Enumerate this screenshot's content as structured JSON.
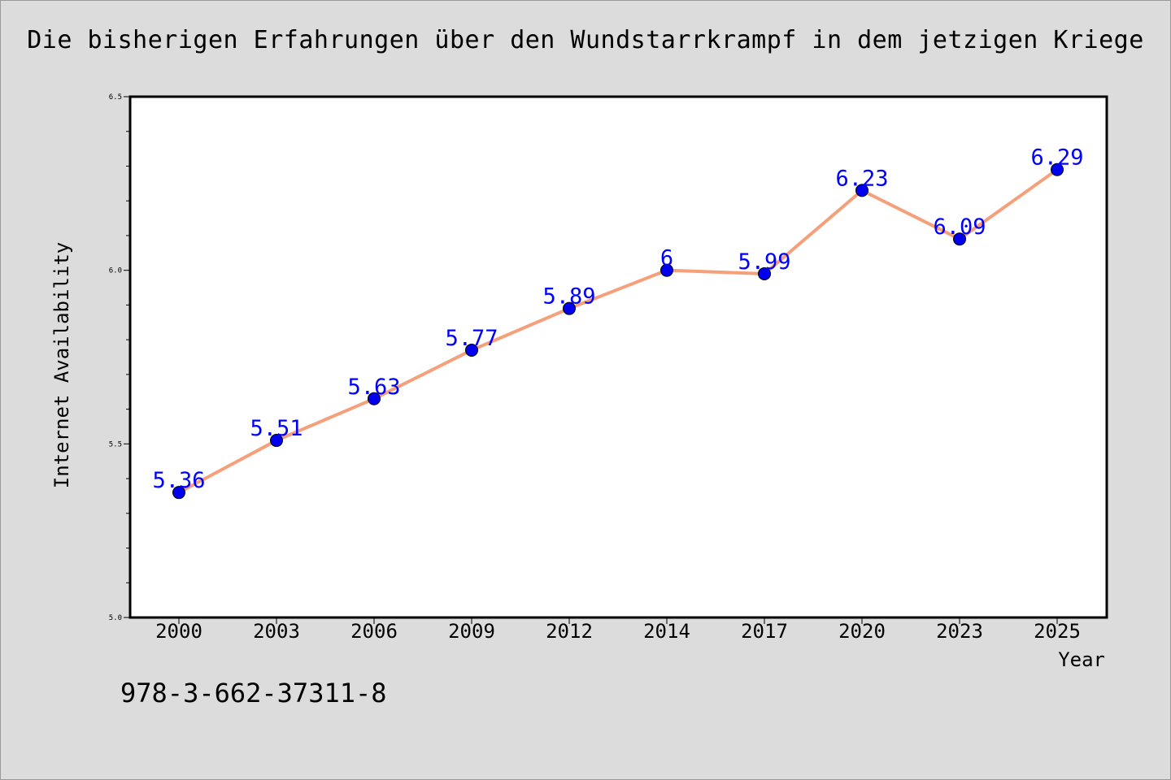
{
  "chart_data": {
    "type": "line",
    "title": "Die bisherigen Erfahrungen über den Wundstarrkrampf in dem jetzigen Kriege",
    "xlabel": "Year",
    "ylabel": "Internet Availability",
    "categories": [
      "2000",
      "2003",
      "2006",
      "2009",
      "2012",
      "2014",
      "2017",
      "2020",
      "2023",
      "2025"
    ],
    "series": [
      {
        "values": [
          5.36,
          5.51,
          5.63,
          5.77,
          5.89,
          6,
          5.99,
          6.23,
          6.09,
          6.29
        ]
      }
    ],
    "data_labels": [
      "5.36",
      "5.51",
      "5.63",
      "5.77",
      "5.89",
      "6",
      "5.99",
      "6.23",
      "6.09",
      "6.29"
    ],
    "ylim": [
      5.0,
      6.5
    ],
    "yticks": [
      "5.0",
      "5.5",
      "6.0",
      "6.5"
    ],
    "grid": false,
    "colors": {
      "line": "#f5a07a",
      "marker": "#0000ee",
      "label": "#0000ff",
      "background": "#dcdcdc",
      "plot_background": "#ffffff"
    }
  },
  "footer": {
    "isbn": "978-3-662-37311-8"
  }
}
